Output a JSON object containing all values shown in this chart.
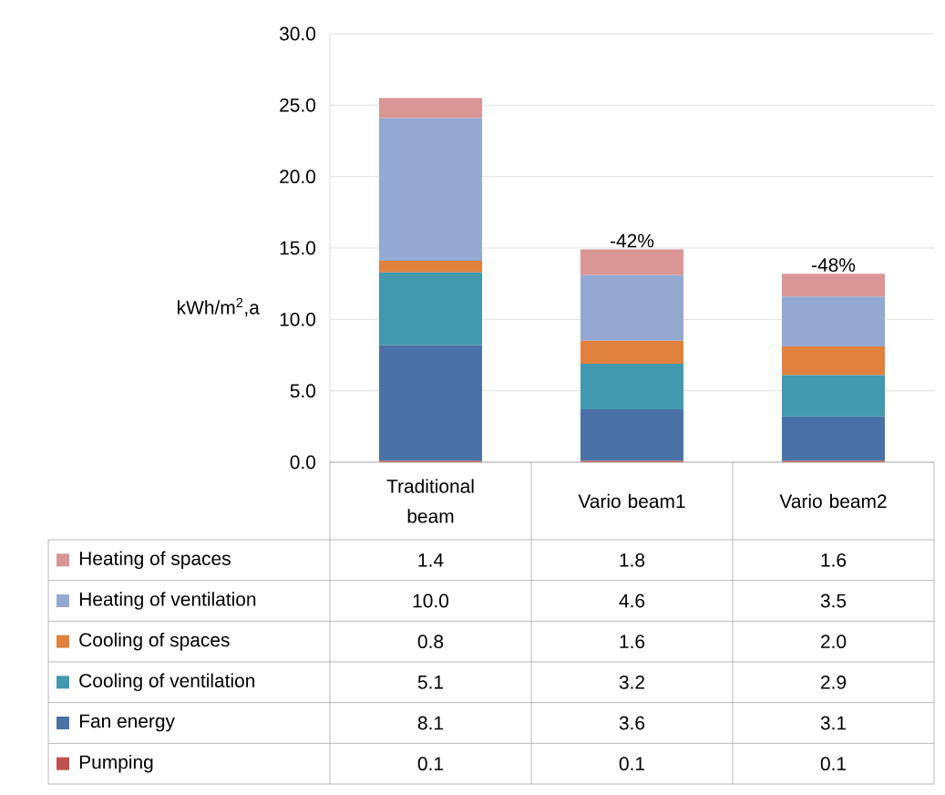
{
  "chart_data": {
    "type": "bar",
    "stacked": true,
    "ylabel": "kWh/m$^{2}$,a",
    "categories": [
      "Traditional beam",
      "Vario beam1",
      "Vario beam2"
    ],
    "series": [
      {
        "name": "Pumping",
        "color": "#c0504d",
        "values": [
          0.1,
          0.1,
          0.1
        ],
        "value_labels": [
          "0.1",
          "0.1",
          "0.1"
        ]
      },
      {
        "name": "Fan energy",
        "color": "#4a72a6",
        "values": [
          8.1,
          3.6,
          3.1
        ],
        "value_labels": [
          "8.1",
          "3.6",
          "3.1"
        ]
      },
      {
        "name": "Cooling of ventilation",
        "color": "#4198af",
        "values": [
          5.1,
          3.2,
          2.9
        ],
        "value_labels": [
          "5.1",
          "3.2",
          "2.9"
        ]
      },
      {
        "name": "Cooling of spaces",
        "color": "#e0823d",
        "values": [
          0.8,
          1.6,
          2.0
        ],
        "value_labels": [
          "0.8",
          "1.6",
          "2.0"
        ]
      },
      {
        "name": "Heating of ventilation",
        "color": "#94a9d1",
        "values": [
          10.0,
          4.6,
          3.5
        ],
        "value_labels": [
          "10.0",
          "4.6",
          "3.5"
        ]
      },
      {
        "name": "Heating of spaces",
        "color": "#d99694",
        "values": [
          1.4,
          1.8,
          1.6
        ],
        "value_labels": [
          "1.4",
          "1.8",
          "1.6"
        ]
      }
    ],
    "ylim": [
      0,
      30
    ],
    "yticks": [
      {
        "value": 0,
        "label": "0.0"
      },
      {
        "value": 5,
        "label": "5.0"
      },
      {
        "value": 10,
        "label": "10.0"
      },
      {
        "value": 15,
        "label": "15.0"
      },
      {
        "value": 20,
        "label": "20.0"
      },
      {
        "value": 25,
        "label": "25.0"
      },
      {
        "value": 30,
        "label": "30.0"
      }
    ],
    "grid": "y",
    "legend": "bottom",
    "annotations": [
      {
        "text": "-42%",
        "x": "Vario beam1",
        "y": 14.9
      },
      {
        "text": "-48%",
        "x": "Vario beam2",
        "y": 13.2
      }
    ]
  }
}
